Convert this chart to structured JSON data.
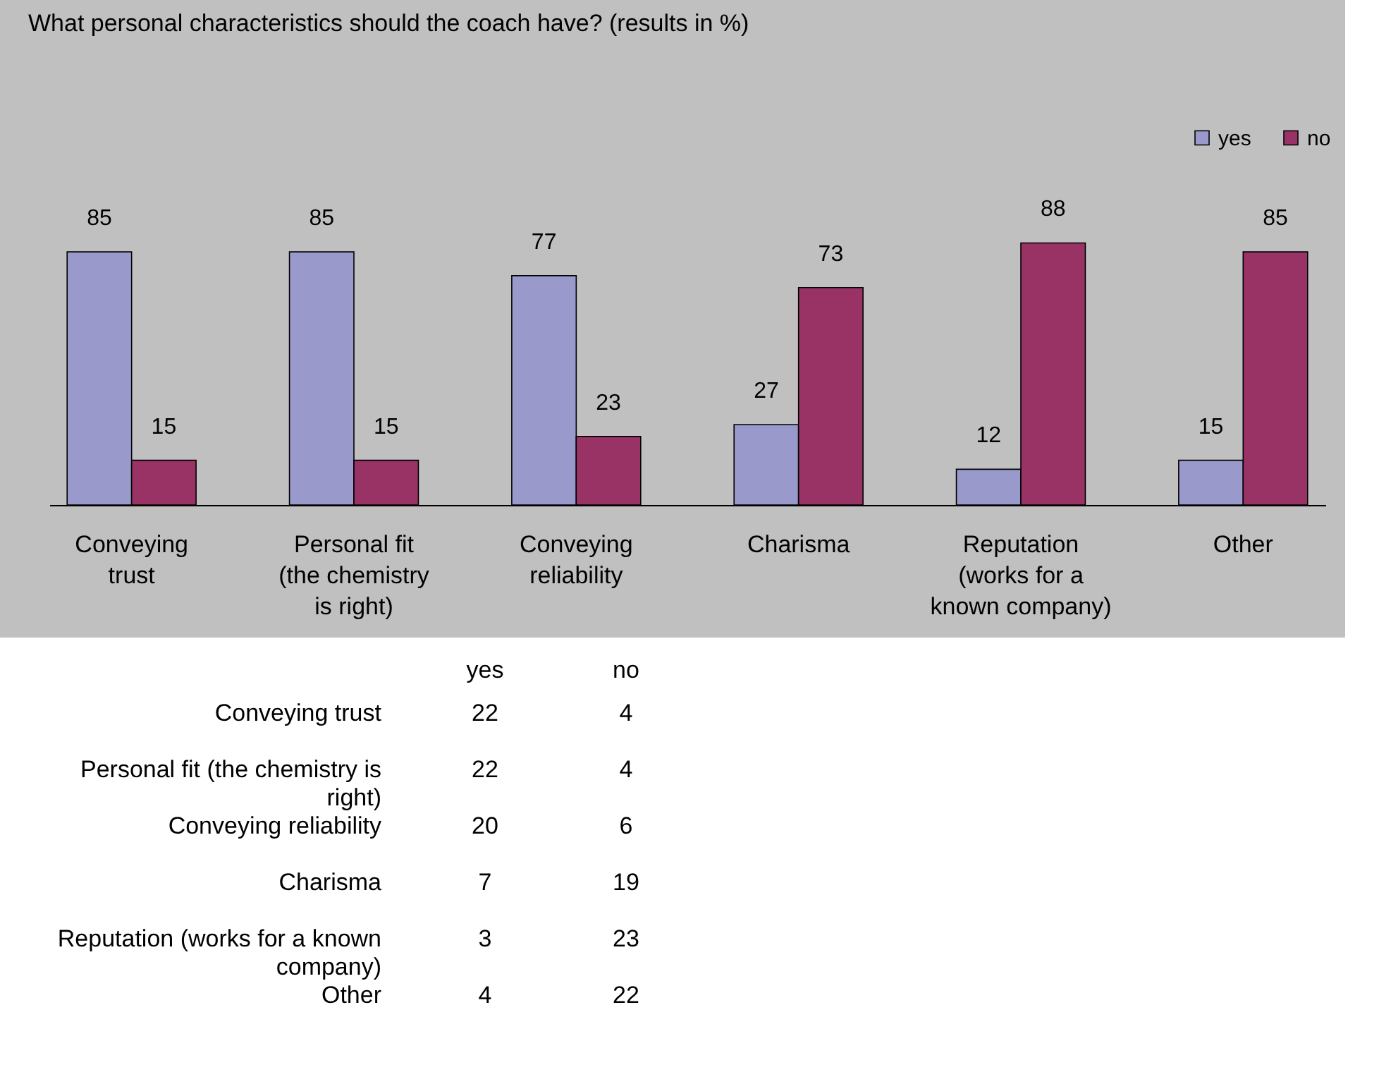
{
  "chart_data": [
    {
      "type": "bar",
      "title": "What personal characteristics should the coach have? (results in %)",
      "categories": [
        "Conveying trust",
        "Personal fit (the chemistry is right)",
        "Conveying reliability",
        "Charisma",
        "Reputation (works for a known company)",
        "Other"
      ],
      "series": [
        {
          "name": "yes",
          "color": "#9999cc",
          "values": [
            85,
            85,
            77,
            27,
            12,
            15
          ]
        },
        {
          "name": "no",
          "color": "#993366",
          "values": [
            15,
            15,
            23,
            73,
            88,
            85
          ]
        }
      ],
      "data_labels": true,
      "legend": "top right"
    },
    {
      "type": "heatmap",
      "categories": [
        "yes",
        "no"
      ],
      "y_categories": [
        "Conveying trust",
        "Personal fit (the chemistry is right)",
        "Conveying reliability",
        "Charisma",
        "Reputation (works for a known company)",
        "Other"
      ],
      "cells": [
        [
          22,
          4
        ],
        [
          22,
          4
        ],
        [
          20,
          6
        ],
        [
          7,
          19
        ],
        [
          3,
          23
        ],
        [
          4,
          22
        ]
      ],
      "data_labels": true
    }
  ]
}
